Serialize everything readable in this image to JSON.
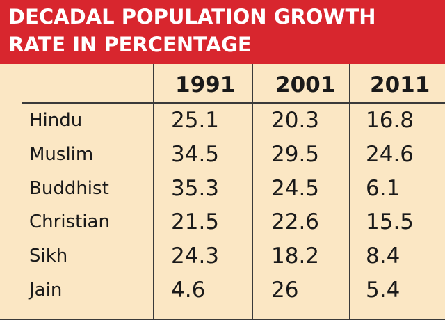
{
  "chart_data": {
    "type": "table",
    "title_lines": [
      "DECADAL POPULATION GROWTH",
      "RATE IN PERCENTAGE"
    ],
    "columns": [
      "1991",
      "2001",
      "2011"
    ],
    "rows": [
      {
        "label": "Hindu",
        "values": [
          "25.1",
          "20.3",
          "16.8"
        ]
      },
      {
        "label": "Muslim",
        "values": [
          "34.5",
          "29.5",
          "24.6"
        ]
      },
      {
        "label": "Buddhist",
        "values": [
          "35.3",
          "24.5",
          "6.1"
        ]
      },
      {
        "label": "Christian",
        "values": [
          "21.5",
          "22.6",
          "15.5"
        ]
      },
      {
        "label": "Sikh",
        "values": [
          "24.3",
          "18.2",
          "8.4"
        ]
      },
      {
        "label": "Jain",
        "values": [
          "4.6",
          "26",
          "5.4"
        ]
      }
    ]
  },
  "colors": {
    "title_background": "#d8262e",
    "title_text": "#ffffff",
    "table_background": "#fbe7c4",
    "rule": "#3a3a3a",
    "text": "#1a1a1a"
  }
}
